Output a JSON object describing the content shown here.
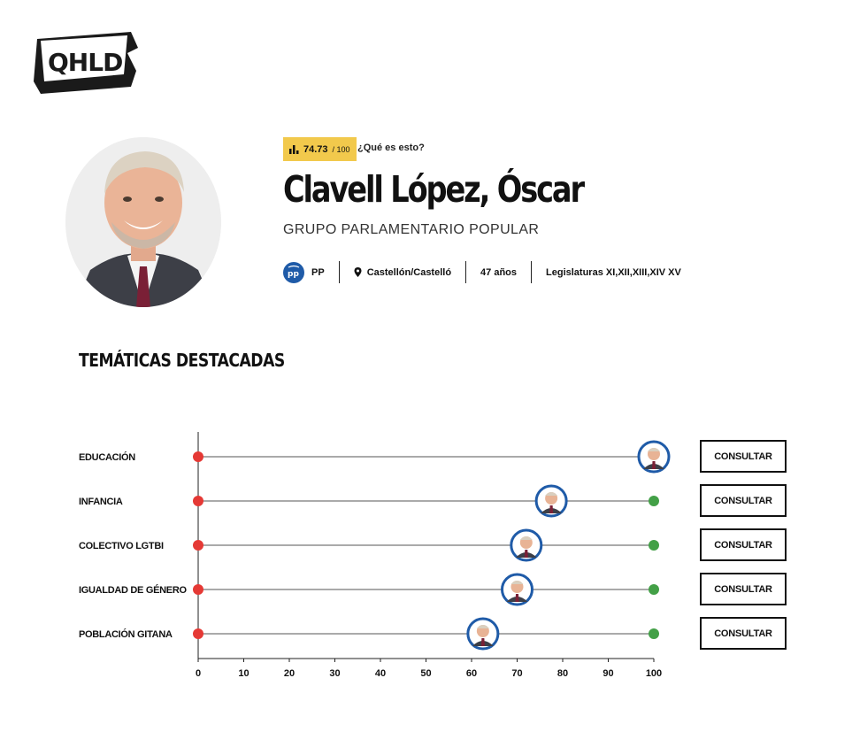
{
  "brand": {
    "logo_text": "QHLD"
  },
  "profile": {
    "score": "74.73",
    "score_total": "/ 100",
    "score_help": "¿Qué es esto?",
    "name": "Clavell López, Óscar",
    "group": "GRUPO PARLAMENTARIO POPULAR",
    "party": "PP",
    "location": "Castellón/Castelló",
    "age": "47 años",
    "legislatures": "Legislaturas XI,XII,XIII,XIV XV"
  },
  "section": {
    "title": "TEMÁTICAS DESTACADAS"
  },
  "colors": {
    "low": "#e53935",
    "high": "#43a047",
    "accent": "#f2c94c",
    "party_blue": "#1f5ba8"
  },
  "chart_data": {
    "type": "scatter",
    "xlim": [
      0,
      100
    ],
    "x_ticks": [
      "0",
      "10",
      "20",
      "30",
      "40",
      "50",
      "60",
      "70",
      "80",
      "90",
      "100"
    ],
    "categories": [
      "EDUCACIÓN",
      "INFANCIA",
      "COLECTIVO LGTBI",
      "IGUALDAD DE GÉNERO",
      "POBLACIÓN GITANA"
    ],
    "values": [
      100,
      77.5,
      72,
      70,
      62.5
    ],
    "range_min": 0,
    "range_max": 100
  },
  "actions": {
    "consult_label": "CONSULTAR"
  }
}
